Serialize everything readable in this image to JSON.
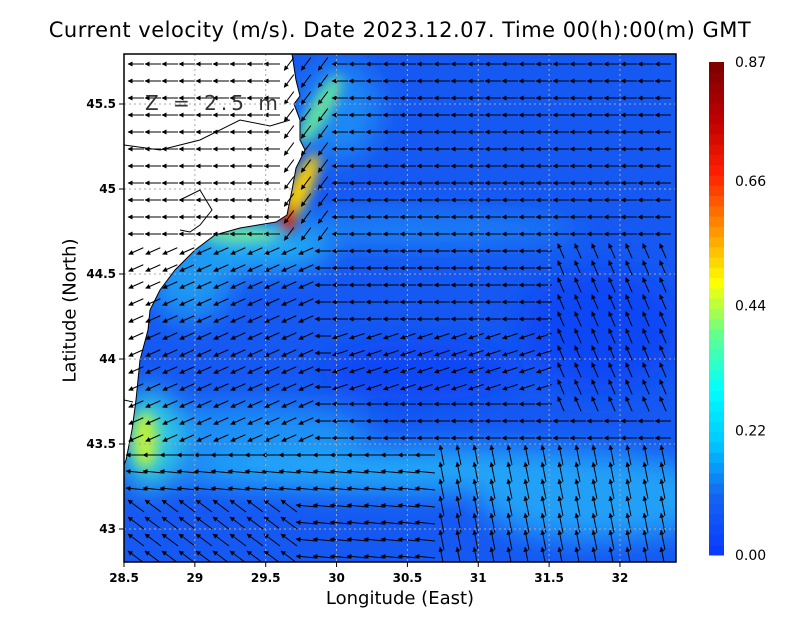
{
  "title": "Current velocity (m/s). Date 2023.12.07. Time 00(h):00(m) GMT",
  "depth_label": "Z = 2.5 m",
  "chart_data": {
    "type": "heatmap",
    "title": "Current velocity (m/s). Date 2023.12.07. Time 00(h):00(m) GMT",
    "xlabel": "Longitude (East)",
    "ylabel": "Latitude (North)",
    "xlim": [
      28.5,
      32.4
    ],
    "ylim": [
      42.8,
      45.8
    ],
    "x_ticks": [
      "28.5",
      "29",
      "29.5",
      "30",
      "30.5",
      "31",
      "31.5",
      "32"
    ],
    "y_ticks": [
      "43",
      "43.5",
      "44",
      "44.5",
      "45",
      "45.5"
    ],
    "grid": true,
    "colorbar": {
      "ticks": [
        "0.00",
        "0.22",
        "0.44",
        "0.66",
        "0.87"
      ],
      "range": [
        0,
        0.87
      ],
      "colors": [
        "#0a3cff",
        "#1464f0",
        "#00c8ff",
        "#00ffff",
        "#60ff90",
        "#ffff00",
        "#ff9000",
        "#ff2000",
        "#c00000",
        "#800000"
      ]
    },
    "annotation": "Z = 2.5 m"
  }
}
